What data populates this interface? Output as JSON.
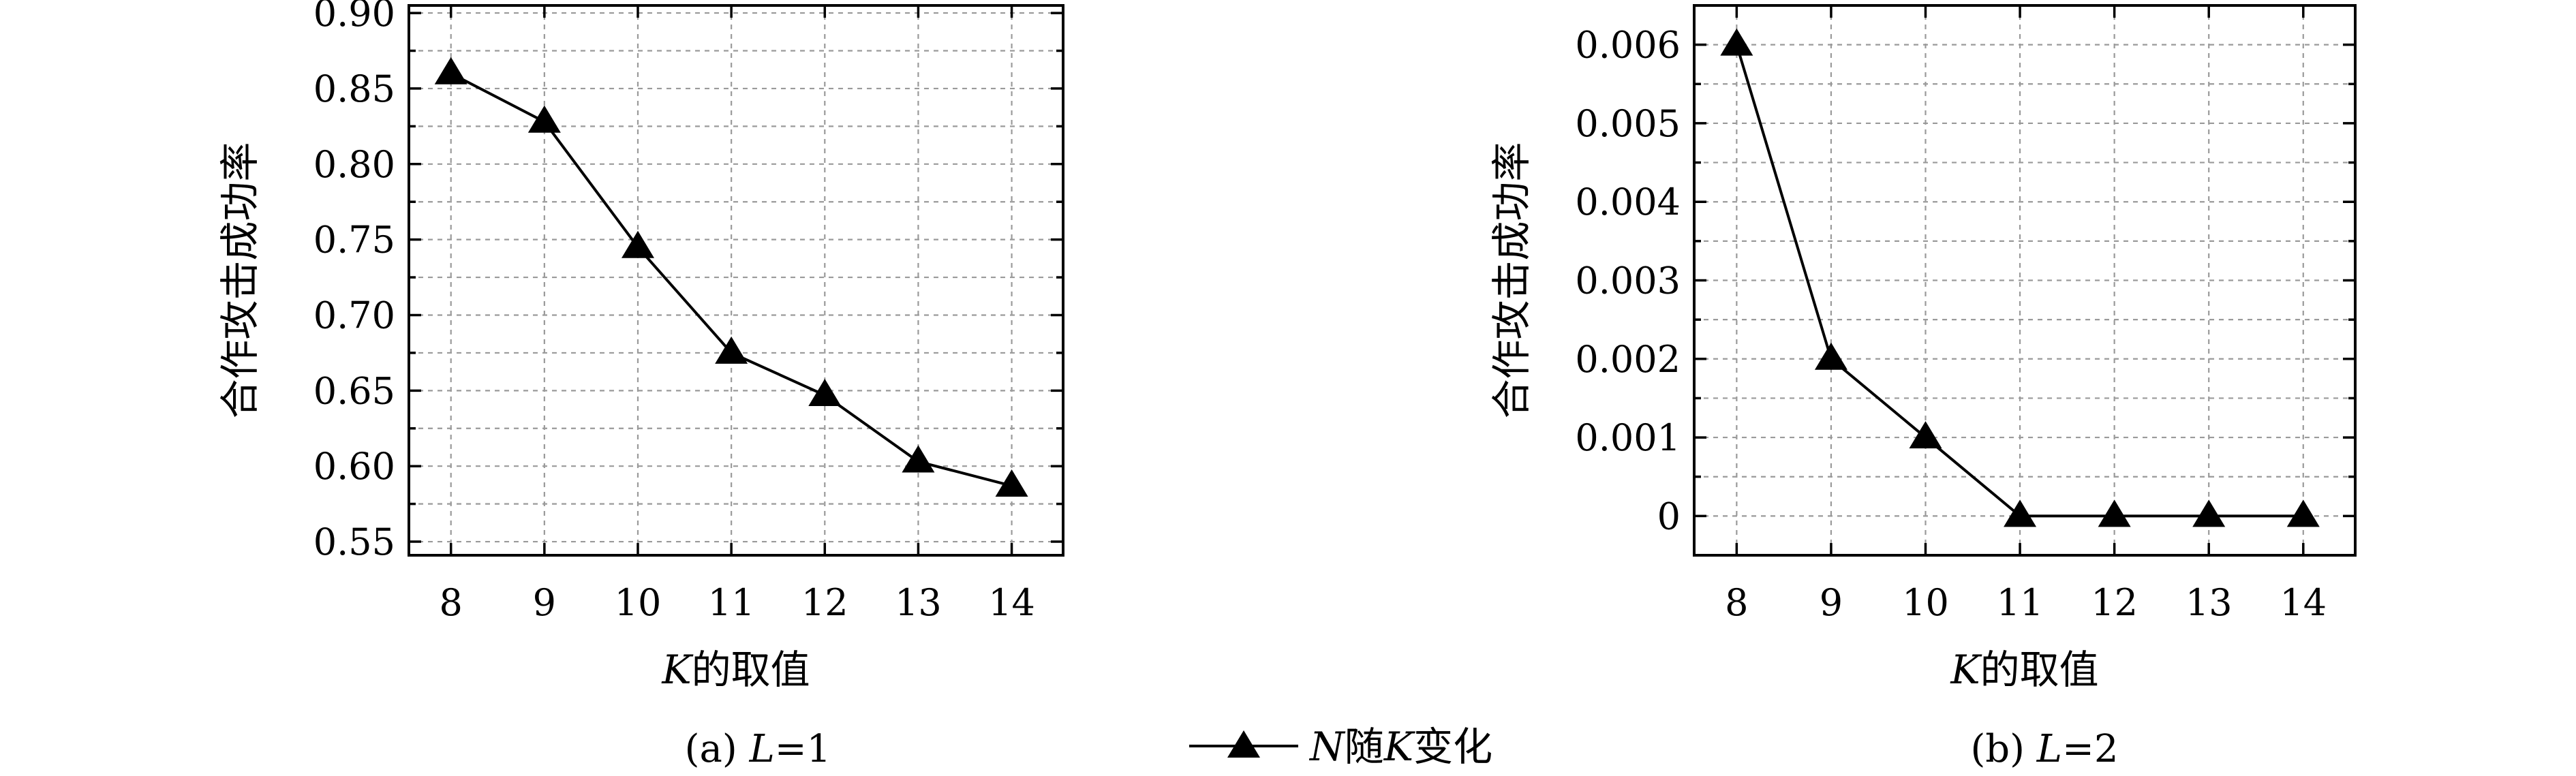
{
  "legend": {
    "label_prefix": "N",
    "label_mid": "随",
    "label_var": "K",
    "label_suffix": "变化"
  },
  "chart_data": [
    {
      "type": "line",
      "caption_prefix": "(a) ",
      "caption_var": "L",
      "caption_suffix": "=1",
      "xlabel_var": "K",
      "xlabel_text": "的取值",
      "ylabel": "合作攻击成功率",
      "x": [
        8,
        9,
        10,
        11,
        12,
        13,
        14
      ],
      "x_tick_labels": [
        "8",
        "9",
        "10",
        "11",
        "12",
        "13",
        "14"
      ],
      "xlim": [
        7.55,
        14.55
      ],
      "ylim": [
        0.541,
        0.905
      ],
      "y_ticks": [
        0.55,
        0.6,
        0.65,
        0.7,
        0.75,
        0.8,
        0.85,
        0.9
      ],
      "y_tick_labels": [
        "0.55",
        "0.60",
        "0.65",
        "0.70",
        "0.75",
        "0.80",
        "0.85",
        "0.90"
      ],
      "y_minor_ticks": [
        0.575,
        0.625,
        0.675,
        0.725,
        0.775,
        0.825,
        0.875
      ],
      "grid": true,
      "series": [
        {
          "values": [
            0.86,
            0.828,
            0.745,
            0.675,
            0.647,
            0.603,
            0.587
          ],
          "marker": "triangle"
        }
      ]
    },
    {
      "type": "line",
      "caption_prefix": "(b) ",
      "caption_var": "L",
      "caption_suffix": "=2",
      "xlabel_var": "K",
      "xlabel_text": "的取值",
      "ylabel": "合作攻击成功率",
      "x": [
        8,
        9,
        10,
        11,
        12,
        13,
        14
      ],
      "x_tick_labels": [
        "8",
        "9",
        "10",
        "11",
        "12",
        "13",
        "14"
      ],
      "xlim": [
        7.55,
        14.55
      ],
      "ylim": [
        -0.0005,
        0.0065
      ],
      "y_ticks": [
        0,
        0.001,
        0.002,
        0.003,
        0.004,
        0.005,
        0.006
      ],
      "y_tick_labels": [
        "0",
        "0.001",
        "0.002",
        "0.003",
        "0.004",
        "0.005",
        "0.006"
      ],
      "y_minor_ticks": [
        0.0005,
        0.0015,
        0.0025,
        0.0035,
        0.0045,
        0.0055
      ],
      "grid": true,
      "series": [
        {
          "values": [
            0.006,
            0.002,
            0.001,
            0,
            0,
            0,
            0
          ],
          "marker": "triangle"
        }
      ]
    }
  ]
}
